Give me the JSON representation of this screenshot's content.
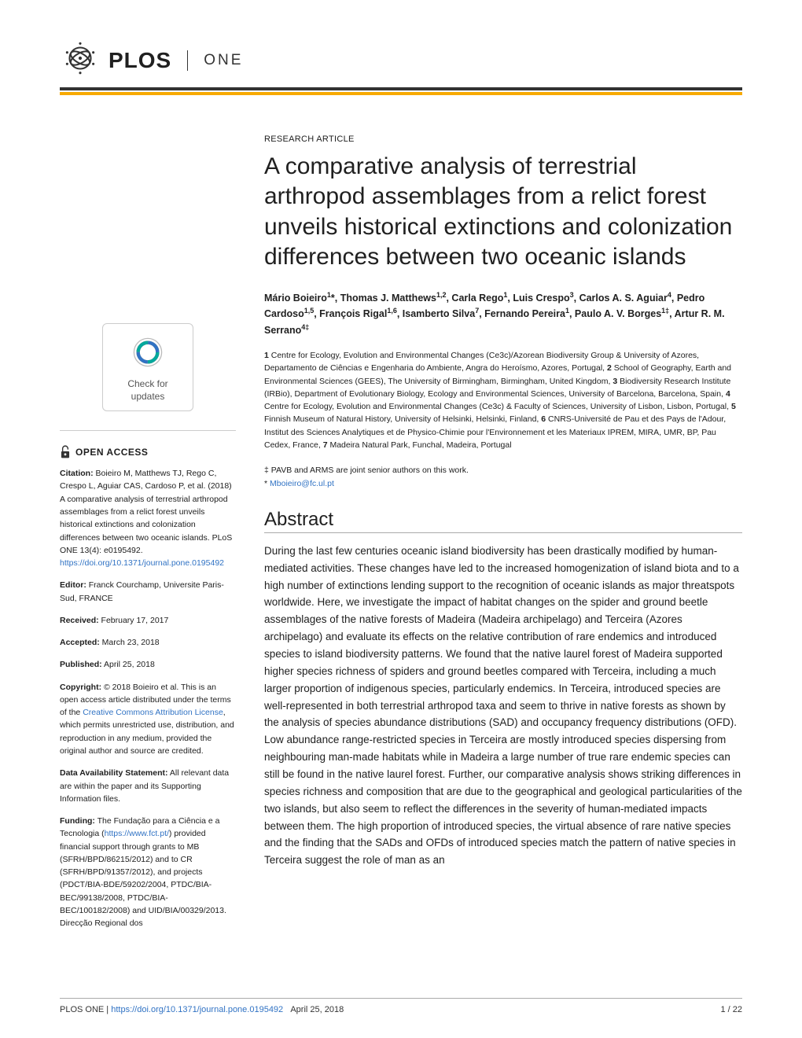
{
  "journal": {
    "publisher": "PLOS",
    "name": "ONE"
  },
  "article": {
    "type": "RESEARCH ARTICLE",
    "title": "A comparative analysis of terrestrial arthropod assemblages from a relict forest unveils historical extinctions and colonization differences between two oceanic islands",
    "authors_html": "Mário Boieiro<sup>1</sup>*, Thomas J. Matthews<sup>1,2</sup>, Carla Rego<sup>1</sup>, Luis Crespo<sup>3</sup>, Carlos A. S. Aguiar<sup>4</sup>, Pedro Cardoso<sup>1,5</sup>, François Rigal<sup>1,6</sup>, Isamberto Silva<sup>7</sup>, Fernando Pereira<sup>1</sup>, Paulo A. V. Borges<sup>1‡</sup>, Artur R. M. Serrano<sup>4‡</sup>",
    "affiliations_html": "<strong>1</strong> Centre for Ecology, Evolution and Environmental Changes (Ce3c)/Azorean Biodiversity Group & University of Azores, Departamento de Ciências e Engenharia do Ambiente, Angra do Heroísmo, Azores, Portugal, <strong>2</strong> School of Geography, Earth and Environmental Sciences (GEES), The University of Birmingham, Birmingham, United Kingdom, <strong>3</strong> Biodiversity Research Institute (IRBio), Department of Evolutionary Biology, Ecology and Environmental Sciences, University of Barcelona, Barcelona, Spain, <strong>4</strong> Centre for Ecology, Evolution and Environmental Changes (Ce3c) & Faculty of Sciences, University of Lisbon, Lisbon, Portugal, <strong>5</strong> Finnish Museum of Natural History, University of Helsinki, Helsinki, Finland, <strong>6</strong> CNRS-Université de Pau et des Pays de l'Adour, Institut des Sciences Analytiques et de Physico-Chimie pour l'Environnement et les Materiaux IPREM, MIRA, UMR, BP, Pau Cedex, France, <strong>7</strong> Madeira Natural Park, Funchal, Madeira, Portugal",
    "senior_note": "‡ PAVB and ARMS are joint senior authors on this work.",
    "corresponding": "Mboieiro@fc.ul.pt",
    "abstract_heading": "Abstract",
    "abstract": "During the last few centuries oceanic island biodiversity has been drastically modified by human-mediated activities. These changes have led to the increased homogenization of island biota and to a high number of extinctions lending support to the recognition of oceanic islands as major threatspots worldwide. Here, we investigate the impact of habitat changes on the spider and ground beetle assemblages of the native forests of Madeira (Madeira archipelago) and Terceira (Azores archipelago) and evaluate its effects on the relative contribution of rare endemics and introduced species to island biodiversity patterns. We found that the native laurel forest of Madeira supported higher species richness of spiders and ground beetles compared with Terceira, including a much larger proportion of indigenous species, particularly endemics. In Terceira, introduced species are well-represented in both terrestrial arthropod taxa and seem to thrive in native forests as shown by the analysis of species abundance distributions (SAD) and occupancy frequency distributions (OFD). Low abundance range-restricted species in Terceira are mostly introduced species dispersing from neighbouring man-made habitats while in Madeira a large number of true rare endemic species can still be found in the native laurel forest. Further, our comparative analysis shows striking differences in species richness and composition that are due to the geographical and geological particularities of the two islands, but also seem to reflect the differences in the severity of human-mediated impacts between them. The high proportion of introduced species, the virtual absence of rare native species and the finding that the SADs and OFDs of introduced species match the pattern of native species in Terceira suggest the role of man as an"
  },
  "sidebar": {
    "check_updates": "Check for updates",
    "open_access": "OPEN ACCESS",
    "citation_label": "Citation:",
    "citation_text": " Boieiro M, Matthews TJ, Rego C, Crespo L, Aguiar CAS, Cardoso P, et al. (2018) A comparative analysis of terrestrial arthropod assemblages from a relict forest unveils historical extinctions and colonization differences between two oceanic islands. PLoS ONE 13(4): e0195492. ",
    "doi_link": "https://doi.org/10.1371/journal.pone.0195492",
    "editor_label": "Editor:",
    "editor_text": " Franck Courchamp, Universite Paris-Sud, FRANCE",
    "received_label": "Received:",
    "received_text": " February 17, 2017",
    "accepted_label": "Accepted:",
    "accepted_text": " March 23, 2018",
    "published_label": "Published:",
    "published_text": " April 25, 2018",
    "copyright_label": "Copyright:",
    "copyright_text_a": " © 2018 Boieiro et al. This is an open access article distributed under the terms of the ",
    "cc_link": "Creative Commons Attribution License",
    "copyright_text_b": ", which permits unrestricted use, distribution, and reproduction in any medium, provided the original author and source are credited.",
    "data_label": "Data Availability Statement:",
    "data_text": " All relevant data are within the paper and its Supporting Information files.",
    "funding_label": "Funding:",
    "funding_text_a": " The Fundação para a Ciência e a Tecnologia (",
    "funding_link": "https://www.fct.pt/",
    "funding_text_b": ") provided financial support through grants to MB (SFRH/BPD/86215/2012) and to CR (SFRH/BPD/91357/2012), and projects (PDCT/BIA-BDE/59202/2004, PTDC/BIA-BEC/99138/2008, PTDC/BIA-BEC/100182/2008) and UID/BIA/00329/2013. Direcção Regional dos"
  },
  "footer": {
    "journal": "PLOS ONE | ",
    "doi": "https://doi.org/10.1371/journal.pone.0195492",
    "date": "April 25, 2018",
    "page": "1 / 22"
  },
  "colors": {
    "accent": "#f7a900",
    "text": "#202020",
    "link": "#3173c4",
    "rule": "#333333"
  }
}
